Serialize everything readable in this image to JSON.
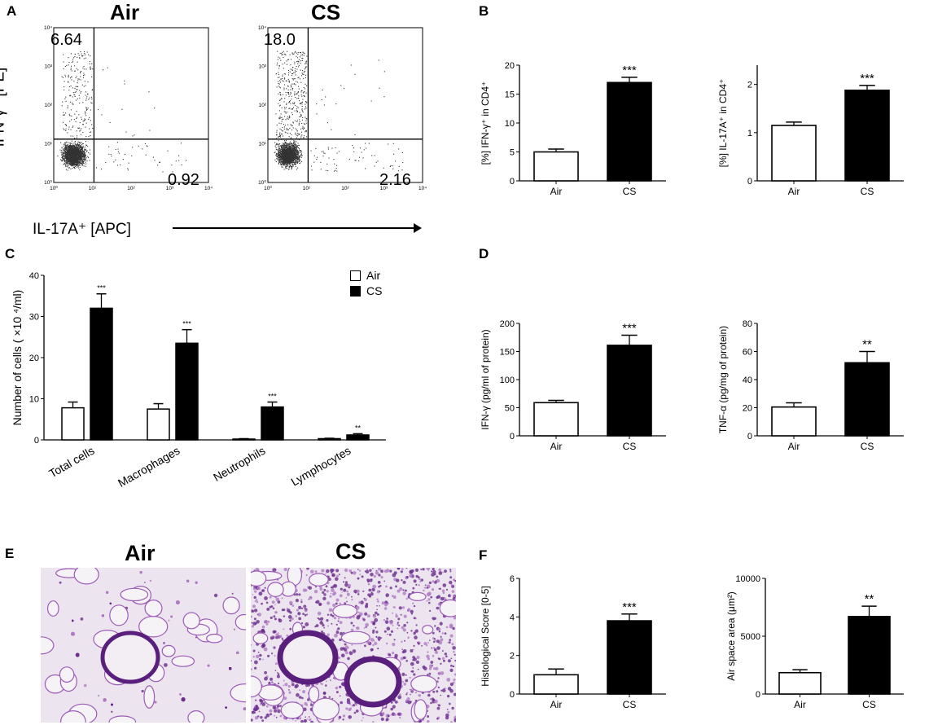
{
  "panels": {
    "A": {
      "letter": "A",
      "titles": [
        "Air",
        "CS"
      ],
      "ylabel": "IFN-γ⁺ [PE]",
      "xlabel": "IL-17A⁺ [APC]",
      "air_quadrants": {
        "ul": "6.64",
        "lr": "0.92"
      },
      "cs_quadrants": {
        "ul": "18.0",
        "lr": "2.16"
      },
      "y_ticks": [
        "10⁴",
        "10³",
        "10²",
        "10¹",
        "10⁰"
      ],
      "x_ticks": [
        "10⁰",
        "10¹",
        "10²",
        "10³",
        "10⁴"
      ]
    },
    "B": {
      "letter": "B"
    },
    "C": {
      "letter": "C",
      "legend": [
        "Air",
        "CS"
      ]
    },
    "D": {
      "letter": "D"
    },
    "E": {
      "letter": "E",
      "titles": [
        "Air",
        "CS"
      ]
    },
    "F": {
      "letter": "F"
    }
  },
  "colors": {
    "air": "#ffffff",
    "cs": "#000000",
    "stain": "#8a3fa8",
    "background": "#ece4ee"
  },
  "chart_data": [
    {
      "id": "B1",
      "type": "bar",
      "categories": [
        "Air",
        "CS"
      ],
      "values": [
        5.0,
        17.0
      ],
      "errors": [
        0.5,
        0.9
      ],
      "ylabel": "[%] IFN-γ⁺ in CD4⁺",
      "ylim": [
        0,
        20
      ],
      "yticks": [
        0,
        5,
        10,
        15,
        20
      ],
      "significance": [
        "",
        "***"
      ]
    },
    {
      "id": "B2",
      "type": "bar",
      "categories": [
        "Air",
        "CS"
      ],
      "values": [
        1.15,
        1.88
      ],
      "errors": [
        0.07,
        0.1
      ],
      "ylabel": "[%] IL-17A⁺ in CD4⁺",
      "ylim": [
        0,
        2.4
      ],
      "yticks": [
        0,
        1,
        2
      ],
      "significance": [
        "",
        "***"
      ]
    },
    {
      "id": "C",
      "type": "bar",
      "categories": [
        "Total cells",
        "Macrophages",
        "Neutrophils",
        "Lymphocytes"
      ],
      "series": [
        {
          "name": "Air",
          "values": [
            7.8,
            7.5,
            0.2,
            0.3
          ],
          "errors": [
            1.4,
            1.3,
            0.1,
            0.1
          ]
        },
        {
          "name": "CS",
          "values": [
            32,
            23.5,
            8,
            1.2
          ],
          "errors": [
            3.5,
            3.3,
            1.2,
            0.3
          ]
        }
      ],
      "ylabel": "Number of cells ( ×10 ⁴/ml)",
      "ylim": [
        0,
        40
      ],
      "yticks": [
        0,
        10,
        20,
        30,
        40
      ],
      "significance": [
        "***",
        "***",
        "***",
        "**"
      ]
    },
    {
      "id": "D1",
      "type": "bar",
      "categories": [
        "Air",
        "CS"
      ],
      "values": [
        59,
        161
      ],
      "errors": [
        4,
        18
      ],
      "ylabel": "IFN-γ (pg/ml of protein)",
      "ylim": [
        0,
        200
      ],
      "yticks": [
        0,
        50,
        100,
        150,
        200
      ],
      "significance": [
        "",
        "***"
      ]
    },
    {
      "id": "D2",
      "type": "bar",
      "categories": [
        "Air",
        "CS"
      ],
      "values": [
        20.5,
        52
      ],
      "errors": [
        3,
        8
      ],
      "ylabel": "TNF-α (pg/mg of protein)",
      "ylim": [
        0,
        80
      ],
      "yticks": [
        0,
        20,
        40,
        60,
        80
      ],
      "significance": [
        "",
        "**"
      ]
    },
    {
      "id": "F1",
      "type": "bar",
      "categories": [
        "Air",
        "CS"
      ],
      "values": [
        1.0,
        3.8
      ],
      "errors": [
        0.3,
        0.35
      ],
      "ylabel": "Histological Score [0-5]",
      "ylim": [
        0,
        6
      ],
      "yticks": [
        0,
        2,
        4,
        6
      ],
      "significance": [
        "",
        "***"
      ]
    },
    {
      "id": "F2",
      "type": "bar",
      "categories": [
        "Air",
        "CS"
      ],
      "values": [
        1850,
        6700
      ],
      "errors": [
        250,
        900
      ],
      "ylabel": "Air space area (μm²)",
      "ylim": [
        0,
        10000
      ],
      "yticks": [
        0,
        5000,
        10000
      ],
      "significance": [
        "",
        "**"
      ]
    }
  ]
}
